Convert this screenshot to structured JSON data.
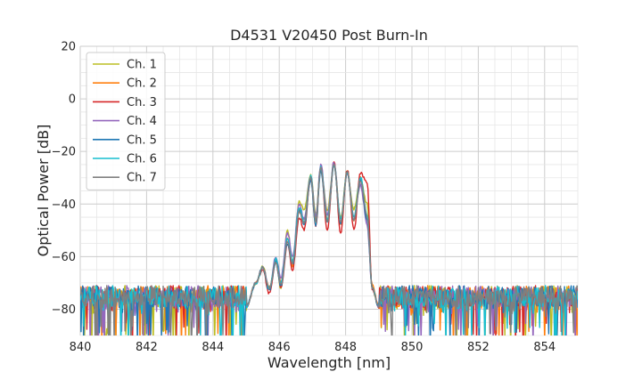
{
  "chart_data": {
    "type": "line",
    "title": "D4531 V20450 Post Burn-In",
    "xlabel": "Wavelength [nm]",
    "ylabel": "Optical Power [dB]",
    "xlim": [
      840,
      855
    ],
    "ylim": [
      -90,
      20
    ],
    "x_ticks": [
      840,
      842,
      844,
      846,
      848,
      850,
      852,
      854
    ],
    "y_ticks": [
      -80,
      -60,
      -40,
      -20,
      0,
      20
    ],
    "grid": true,
    "legend_position": "top-left",
    "noise_floor_db": -82,
    "x_step_nm": 0.025,
    "series": [
      {
        "name": "Ch. 1",
        "color": "#bcbd22",
        "data": [
          [
            845.0,
            -79
          ],
          [
            845.3,
            -70
          ],
          [
            845.5,
            -64
          ],
          [
            845.7,
            -72
          ],
          [
            845.9,
            -62
          ],
          [
            846.05,
            -72
          ],
          [
            846.25,
            -50
          ],
          [
            846.4,
            -62
          ],
          [
            846.6,
            -39
          ],
          [
            846.75,
            -42
          ],
          [
            846.95,
            -29
          ],
          [
            847.1,
            -44
          ],
          [
            847.25,
            -27
          ],
          [
            847.45,
            -42
          ],
          [
            847.65,
            -25
          ],
          [
            847.85,
            -45
          ],
          [
            848.05,
            -28
          ],
          [
            848.25,
            -42
          ],
          [
            848.45,
            -31
          ],
          [
            848.65,
            -40
          ],
          [
            848.8,
            -72
          ],
          [
            849.0,
            -79
          ]
        ]
      },
      {
        "name": "Ch. 2",
        "color": "#ff7f0e",
        "data": [
          [
            845.0,
            -79
          ],
          [
            845.3,
            -70
          ],
          [
            845.5,
            -64
          ],
          [
            845.7,
            -72
          ],
          [
            845.9,
            -61
          ],
          [
            846.05,
            -70
          ],
          [
            846.25,
            -53
          ],
          [
            846.4,
            -64
          ],
          [
            846.6,
            -42
          ],
          [
            846.75,
            -47
          ],
          [
            846.95,
            -30
          ],
          [
            847.1,
            -46
          ],
          [
            847.25,
            -26
          ],
          [
            847.45,
            -46
          ],
          [
            847.65,
            -25
          ],
          [
            847.85,
            -48
          ],
          [
            848.05,
            -27
          ],
          [
            848.25,
            -46
          ],
          [
            848.45,
            -30
          ],
          [
            848.65,
            -45
          ],
          [
            848.8,
            -71
          ],
          [
            849.0,
            -79
          ]
        ]
      },
      {
        "name": "Ch. 3",
        "color": "#d62728",
        "data": [
          [
            845.0,
            -79
          ],
          [
            845.3,
            -70
          ],
          [
            845.5,
            -65
          ],
          [
            845.7,
            -74
          ],
          [
            845.9,
            -62
          ],
          [
            846.05,
            -72
          ],
          [
            846.25,
            -55
          ],
          [
            846.4,
            -65
          ],
          [
            846.6,
            -45
          ],
          [
            846.75,
            -50
          ],
          [
            846.95,
            -30
          ],
          [
            847.1,
            -49
          ],
          [
            847.25,
            -26
          ],
          [
            847.45,
            -50
          ],
          [
            847.65,
            -24
          ],
          [
            847.85,
            -51
          ],
          [
            848.05,
            -27
          ],
          [
            848.25,
            -50
          ],
          [
            848.45,
            -28
          ],
          [
            848.65,
            -32
          ],
          [
            848.8,
            -72
          ],
          [
            849.0,
            -79
          ]
        ]
      },
      {
        "name": "Ch. 4",
        "color": "#9467bd",
        "data": [
          [
            845.0,
            -79
          ],
          [
            845.3,
            -70
          ],
          [
            845.5,
            -64
          ],
          [
            845.7,
            -72
          ],
          [
            845.9,
            -60
          ],
          [
            846.05,
            -68
          ],
          [
            846.25,
            -51
          ],
          [
            846.4,
            -60
          ],
          [
            846.6,
            -40
          ],
          [
            846.75,
            -46
          ],
          [
            846.95,
            -29
          ],
          [
            847.1,
            -45
          ],
          [
            847.25,
            -25
          ],
          [
            847.45,
            -44
          ],
          [
            847.65,
            -24
          ],
          [
            847.85,
            -46
          ],
          [
            848.05,
            -28
          ],
          [
            848.25,
            -45
          ],
          [
            848.45,
            -33
          ],
          [
            848.65,
            -48
          ],
          [
            848.8,
            -72
          ],
          [
            849.0,
            -79
          ]
        ]
      },
      {
        "name": "Ch. 5",
        "color": "#1f77b4",
        "data": [
          [
            845.0,
            -79
          ],
          [
            845.3,
            -70
          ],
          [
            845.5,
            -64
          ],
          [
            845.7,
            -73
          ],
          [
            845.9,
            -62
          ],
          [
            846.05,
            -71
          ],
          [
            846.25,
            -55
          ],
          [
            846.4,
            -63
          ],
          [
            846.6,
            -42
          ],
          [
            846.75,
            -48
          ],
          [
            846.95,
            -31
          ],
          [
            847.1,
            -48
          ],
          [
            847.25,
            -27
          ],
          [
            847.45,
            -47
          ],
          [
            847.65,
            -25
          ],
          [
            847.85,
            -47
          ],
          [
            848.05,
            -28
          ],
          [
            848.25,
            -46
          ],
          [
            848.45,
            -31
          ],
          [
            848.65,
            -46
          ],
          [
            848.8,
            -72
          ],
          [
            849.0,
            -79
          ]
        ]
      },
      {
        "name": "Ch. 6",
        "color": "#17becf",
        "data": [
          [
            845.0,
            -79
          ],
          [
            845.3,
            -70
          ],
          [
            845.5,
            -64
          ],
          [
            845.7,
            -72
          ],
          [
            845.9,
            -61
          ],
          [
            846.05,
            -70
          ],
          [
            846.25,
            -53
          ],
          [
            846.4,
            -62
          ],
          [
            846.6,
            -41
          ],
          [
            846.75,
            -47
          ],
          [
            846.95,
            -29
          ],
          [
            847.1,
            -47
          ],
          [
            847.25,
            -26
          ],
          [
            847.45,
            -46
          ],
          [
            847.65,
            -25
          ],
          [
            847.85,
            -46
          ],
          [
            848.05,
            -28
          ],
          [
            848.25,
            -45
          ],
          [
            848.45,
            -30
          ],
          [
            848.65,
            -44
          ],
          [
            848.8,
            -72
          ],
          [
            849.0,
            -79
          ]
        ]
      },
      {
        "name": "Ch. 7",
        "color": "#7f7f7f",
        "data": [
          [
            845.0,
            -79
          ],
          [
            845.3,
            -70
          ],
          [
            845.5,
            -64
          ],
          [
            845.7,
            -72
          ],
          [
            845.9,
            -62
          ],
          [
            846.05,
            -71
          ],
          [
            846.25,
            -54
          ],
          [
            846.4,
            -63
          ],
          [
            846.6,
            -43
          ],
          [
            846.75,
            -47
          ],
          [
            846.95,
            -30
          ],
          [
            847.1,
            -47
          ],
          [
            847.25,
            -26
          ],
          [
            847.45,
            -47
          ],
          [
            847.65,
            -25
          ],
          [
            847.85,
            -47
          ],
          [
            848.05,
            -28
          ],
          [
            848.25,
            -46
          ],
          [
            848.45,
            -31
          ],
          [
            848.65,
            -45
          ],
          [
            848.8,
            -72
          ],
          [
            849.0,
            -79
          ]
        ]
      }
    ]
  }
}
